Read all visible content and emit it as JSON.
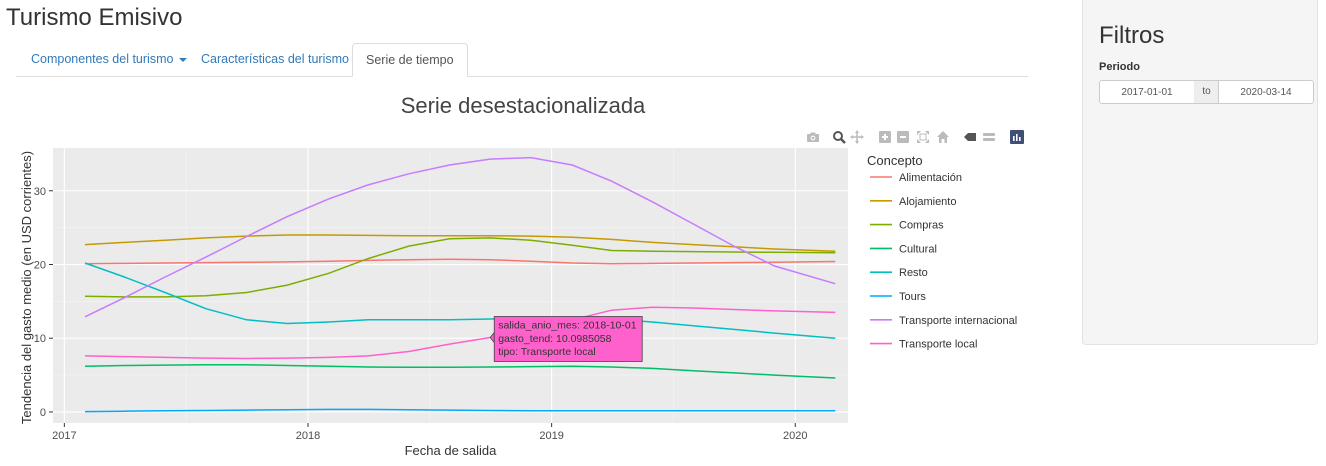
{
  "app": {
    "title": "Turismo Emisivo"
  },
  "tabs": [
    {
      "label": "Componentes del turismo",
      "dropdown": true,
      "active": false
    },
    {
      "label": "Características del turismo",
      "active": false
    },
    {
      "label": "Serie de tiempo",
      "active": true
    }
  ],
  "modebar": {
    "icons": [
      "camera-icon",
      "zoom-icon",
      "pan-icon",
      "zoom-in-icon",
      "zoom-out-icon",
      "autoscale-icon",
      "reset-axes-icon",
      "spike-lines-icon",
      "hover-closest-icon",
      "hover-compare-icon",
      "plotly-logo-icon"
    ]
  },
  "sidebar": {
    "title": "Filtros",
    "period_label": "Periodo",
    "date_start": "2017-01-01",
    "date_sep": "to",
    "date_end": "2020-03-14"
  },
  "tooltip": {
    "lines": [
      "salida_anio_mes: 2018-10-01",
      "gasto_tend: 10.0985058",
      "tipo: Transporte local"
    ],
    "x": "2018-10-01",
    "y": 10.0985058,
    "series": "Transporte local"
  },
  "chart_data": {
    "type": "line",
    "title": "Serie desestacionalizada",
    "xlabel": "Fecha de salida",
    "ylabel": "Tendencia del gasto medio (en USD corrientes)",
    "legend_title": "Concepto",
    "legend_position": "right",
    "grid": true,
    "x_ticks": [
      "2017",
      "2018",
      "2019",
      "2020"
    ],
    "y_ticks": [
      0,
      10,
      20,
      30
    ],
    "xlim": [
      "2016-12-15",
      "2020-03-20"
    ],
    "ylim": [
      -1.5,
      35.8
    ],
    "x": [
      "2017-02-01",
      "2017-04-01",
      "2017-06-01",
      "2017-08-01",
      "2017-10-01",
      "2017-12-01",
      "2018-02-01",
      "2018-04-01",
      "2018-06-01",
      "2018-08-01",
      "2018-10-01",
      "2018-12-01",
      "2019-02-01",
      "2019-04-01",
      "2019-06-01",
      "2019-08-01",
      "2019-10-01",
      "2019-12-01",
      "2020-03-01"
    ],
    "series": [
      {
        "name": "Alimentación",
        "color": "#F8766D",
        "values": [
          20.1,
          20.15,
          20.2,
          20.25,
          20.3,
          20.35,
          20.45,
          20.55,
          20.65,
          20.7,
          20.65,
          20.45,
          20.2,
          20.1,
          20.15,
          20.2,
          20.25,
          20.3,
          20.4
        ]
      },
      {
        "name": "Alojamiento",
        "color": "#C49A00",
        "values": [
          22.7,
          23.0,
          23.3,
          23.6,
          23.85,
          24.0,
          24.0,
          23.95,
          23.9,
          23.9,
          23.9,
          23.85,
          23.7,
          23.4,
          23.0,
          22.7,
          22.4,
          22.1,
          21.8
        ]
      },
      {
        "name": "Compras",
        "color": "#7CAE00",
        "values": [
          15.7,
          15.6,
          15.6,
          15.75,
          16.2,
          17.2,
          18.8,
          20.8,
          22.5,
          23.5,
          23.6,
          23.3,
          22.6,
          21.9,
          21.8,
          21.75,
          21.7,
          21.65,
          21.6
        ]
      },
      {
        "name": "Cultural",
        "color": "#00BE67",
        "values": [
          6.2,
          6.3,
          6.35,
          6.4,
          6.4,
          6.3,
          6.2,
          6.1,
          6.05,
          6.05,
          6.1,
          6.15,
          6.2,
          6.1,
          5.9,
          5.6,
          5.3,
          5.0,
          4.6
        ]
      },
      {
        "name": "Resto",
        "color": "#00BFC4",
        "values": [
          20.2,
          18.3,
          16.2,
          14.0,
          12.5,
          12.0,
          12.2,
          12.5,
          12.5,
          12.5,
          12.6,
          12.7,
          12.8,
          12.6,
          12.2,
          11.7,
          11.2,
          10.7,
          10.0
        ]
      },
      {
        "name": "Tours",
        "color": "#00A9FF",
        "values": [
          0.05,
          0.1,
          0.15,
          0.2,
          0.25,
          0.3,
          0.35,
          0.35,
          0.3,
          0.25,
          0.2,
          0.15,
          0.15,
          0.15,
          0.15,
          0.15,
          0.15,
          0.15,
          0.15
        ]
      },
      {
        "name": "Transporte internacional",
        "color": "#C77CFF",
        "values": [
          12.9,
          15.5,
          18.3,
          21.0,
          23.8,
          26.5,
          28.9,
          30.8,
          32.3,
          33.5,
          34.3,
          34.5,
          33.5,
          31.3,
          28.5,
          25.5,
          22.5,
          19.8,
          17.4
        ]
      },
      {
        "name": "Transporte local",
        "color": "#FF61CC",
        "values": [
          7.6,
          7.5,
          7.4,
          7.3,
          7.25,
          7.3,
          7.4,
          7.6,
          8.2,
          9.2,
          10.1,
          11.2,
          12.5,
          13.8,
          14.2,
          14.1,
          13.9,
          13.7,
          13.5
        ]
      }
    ]
  }
}
